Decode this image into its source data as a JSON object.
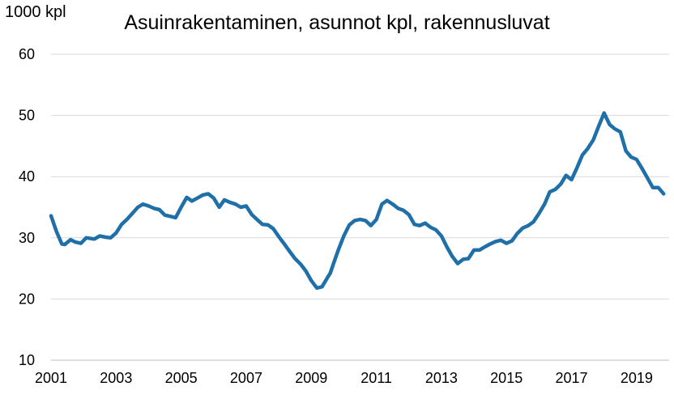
{
  "chart_data": {
    "type": "line",
    "title": "Asuinrakentaminen, asunnot kpl, rakennusluvat",
    "ylabel": "1000 kpl",
    "xlabel": "",
    "ylim": [
      10,
      60
    ],
    "yticks": [
      10,
      20,
      30,
      40,
      50,
      60
    ],
    "xlim": [
      2001,
      2020
    ],
    "xticks": [
      "2001",
      "2003",
      "2005",
      "2007",
      "2009",
      "2011",
      "2013",
      "2015",
      "2017",
      "2019"
    ],
    "grid": "horizontal",
    "line_color": "#1f6fa8",
    "series": [
      {
        "x": [
          2001.0,
          2001.17,
          2001.33,
          2001.42,
          2001.6,
          2001.75,
          2001.92,
          2002.08,
          2002.33,
          2002.5,
          2002.67,
          2002.83,
          2003.0,
          2003.17,
          2003.33,
          2003.5,
          2003.67,
          2003.83,
          2004.0,
          2004.17,
          2004.33,
          2004.5,
          2004.67,
          2004.83,
          2005.0,
          2005.17,
          2005.33,
          2005.5,
          2005.67,
          2005.83,
          2006.0,
          2006.17,
          2006.33,
          2006.5,
          2006.67,
          2006.83,
          2007.0,
          2007.17,
          2007.33,
          2007.5,
          2007.67,
          2007.83,
          2008.0,
          2008.17,
          2008.33,
          2008.5,
          2008.67,
          2008.83,
          2009.0,
          2009.17,
          2009.33,
          2009.5,
          2009.58,
          2009.67,
          2009.83,
          2010.0,
          2010.17,
          2010.33,
          2010.5,
          2010.67,
          2010.83,
          2011.0,
          2011.17,
          2011.33,
          2011.5,
          2011.67,
          2011.83,
          2012.0,
          2012.17,
          2012.33,
          2012.5,
          2012.67,
          2012.83,
          2013.0,
          2013.17,
          2013.33,
          2013.5,
          2013.67,
          2013.83,
          2014.0,
          2014.17,
          2014.33,
          2014.5,
          2014.67,
          2014.83,
          2015.0,
          2015.17,
          2015.33,
          2015.5,
          2015.67,
          2015.83,
          2016.0,
          2016.17,
          2016.33,
          2016.5,
          2016.67,
          2016.83,
          2017.0,
          2017.17,
          2017.33,
          2017.5,
          2017.67,
          2017.83,
          2018.0,
          2018.17,
          2018.33,
          2018.5,
          2018.67,
          2018.83,
          2019.0,
          2019.17,
          2019.33,
          2019.5,
          2019.67,
          2019.83
        ],
        "y": [
          33.6,
          31.0,
          29.0,
          28.9,
          29.7,
          29.3,
          29.1,
          30.0,
          29.8,
          30.3,
          30.1,
          30.0,
          30.8,
          32.2,
          33.0,
          34.0,
          35.0,
          35.5,
          35.2,
          34.8,
          34.6,
          33.7,
          33.5,
          33.3,
          35.0,
          36.6,
          36.0,
          36.5,
          37.0,
          37.2,
          36.5,
          35.0,
          36.2,
          35.8,
          35.5,
          35.0,
          35.2,
          33.8,
          33.0,
          32.2,
          32.1,
          31.5,
          30.2,
          29.0,
          27.8,
          26.6,
          25.7,
          24.6,
          23.0,
          21.8,
          22.0,
          23.5,
          24.2,
          25.6,
          28.0,
          30.3,
          32.1,
          32.8,
          33.0,
          32.8,
          32.0,
          33.0,
          35.5,
          36.1,
          35.5,
          34.8,
          34.5,
          33.8,
          32.2,
          32.0,
          32.4,
          31.7,
          31.3,
          30.3,
          28.5,
          27.0,
          25.8,
          26.5,
          26.6,
          28.0,
          28.0,
          28.5,
          29.0,
          29.4,
          29.6,
          29.1,
          29.5,
          30.7,
          31.6,
          32.0,
          32.6,
          34.0,
          35.5,
          37.5,
          37.9,
          38.8,
          40.2,
          39.5,
          41.5,
          43.5,
          44.6,
          46.0,
          48.2,
          50.4,
          48.5,
          47.8,
          47.3,
          44.2,
          43.2,
          42.8,
          41.3,
          39.8,
          38.2,
          38.2,
          37.2
        ]
      }
    ]
  }
}
